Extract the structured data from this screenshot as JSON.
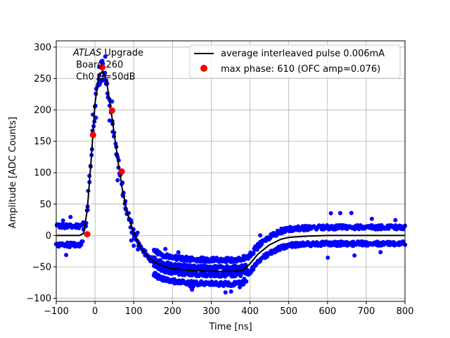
{
  "chart_data": {
    "type": "scatter",
    "title": "",
    "xlabel": "Time [ns]",
    "ylabel": "Amplitude [ADC Counts]",
    "xlim": [
      -100,
      800
    ],
    "ylim": [
      -105,
      310
    ],
    "xticks": [
      -100,
      0,
      100,
      200,
      300,
      400,
      500,
      600,
      700,
      800
    ],
    "yticks": [
      -100,
      -50,
      0,
      50,
      100,
      150,
      200,
      250,
      300
    ],
    "xtick_labels": [
      "−100",
      "0",
      "100",
      "200",
      "300",
      "400",
      "500",
      "600",
      "700",
      "800"
    ],
    "ytick_labels": [
      "−100",
      "−50",
      "0",
      "50",
      "100",
      "150",
      "200",
      "250",
      "300"
    ],
    "grid": true,
    "annotation": {
      "line1_italic": "ATLAS",
      "line1_rest": " Upgrade",
      "line2": " Board 260",
      "line3": " Ch0 G=50dB"
    },
    "legend": {
      "position": "top-right",
      "entries": [
        "average interleaved pulse 0.006mA",
        "max phase: 610 (OFC amp=0.076)"
      ]
    },
    "series": [
      {
        "name": "average interleaved pulse 0.006mA",
        "kind": "line",
        "color": "#000000",
        "x": [
          -100,
          -40,
          -30,
          -20,
          -10,
          0,
          10,
          20,
          30,
          40,
          50,
          60,
          70,
          80,
          90,
          100,
          110,
          120,
          140,
          160,
          180,
          200,
          250,
          300,
          350,
          380,
          400,
          420,
          450,
          480,
          500,
          550,
          600,
          700,
          800
        ],
        "y": [
          0,
          0,
          3,
          40,
          120,
          210,
          255,
          262,
          245,
          205,
          160,
          115,
          75,
          45,
          22,
          6,
          -10,
          -22,
          -36,
          -45,
          -50,
          -53,
          -56,
          -57,
          -57,
          -56,
          -45,
          -30,
          -15,
          -6,
          -3,
          -1,
          0,
          0,
          0
        ]
      },
      {
        "name": "max phase: 610 (OFC amp=0.076)",
        "kind": "points",
        "color": "#ff0000",
        "x": [
          -20,
          -5,
          19,
          44,
          69
        ],
        "y": [
          2,
          160,
          268,
          199,
          102
        ]
      }
    ],
    "scatter_cloud": {
      "color": "#0000ff",
      "noise_bands": [
        {
          "x_range": [
            -100,
            110
          ],
          "offsets": [
            -15,
            15
          ]
        },
        {
          "x_range": [
            150,
            390
          ],
          "offsets": [
            -20,
            -5,
            5,
            18
          ]
        },
        {
          "x_range": [
            390,
            800
          ],
          "offsets": [
            -13,
            13
          ]
        }
      ]
    }
  }
}
